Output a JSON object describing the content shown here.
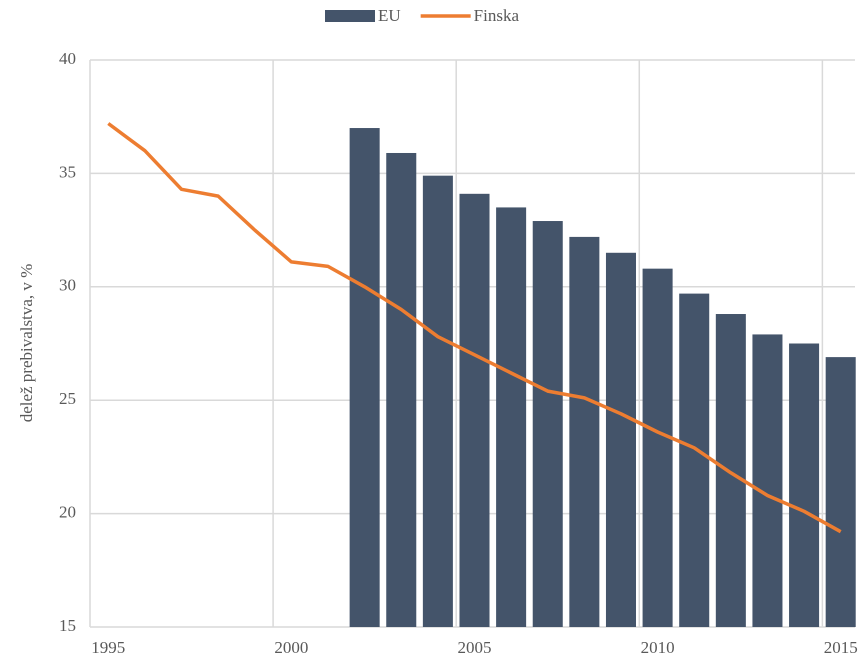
{
  "chart_data": {
    "type": "bar_line",
    "y_axis_label": "delež prebivalstva, v %",
    "categories": [
      "1995",
      null,
      null,
      null,
      null,
      "2000",
      null,
      null,
      null,
      null,
      "2005",
      null,
      null,
      null,
      null,
      "2010",
      null,
      null,
      null,
      null,
      "2015"
    ],
    "series": [
      {
        "name": "EU",
        "type": "bar",
        "color": "#44546a",
        "values": [
          null,
          null,
          null,
          null,
          null,
          null,
          null,
          37.0,
          35.9,
          34.9,
          34.1,
          33.5,
          32.9,
          32.2,
          31.5,
          30.8,
          29.7,
          28.8,
          27.9,
          27.5,
          26.9
        ]
      },
      {
        "name": "Finska",
        "type": "line",
        "color": "#ed7d31",
        "values": [
          37.2,
          36.0,
          34.3,
          34.0,
          32.5,
          31.1,
          30.9,
          30.0,
          29.0,
          27.8,
          27.0,
          26.2,
          25.4,
          25.1,
          24.4,
          23.6,
          22.9,
          21.8,
          20.8,
          20.1,
          19.2
        ]
      }
    ],
    "ylim": [
      15,
      40
    ],
    "yticks": [
      15,
      20,
      25,
      30,
      35,
      40
    ],
    "grid": true,
    "legend": "top"
  }
}
